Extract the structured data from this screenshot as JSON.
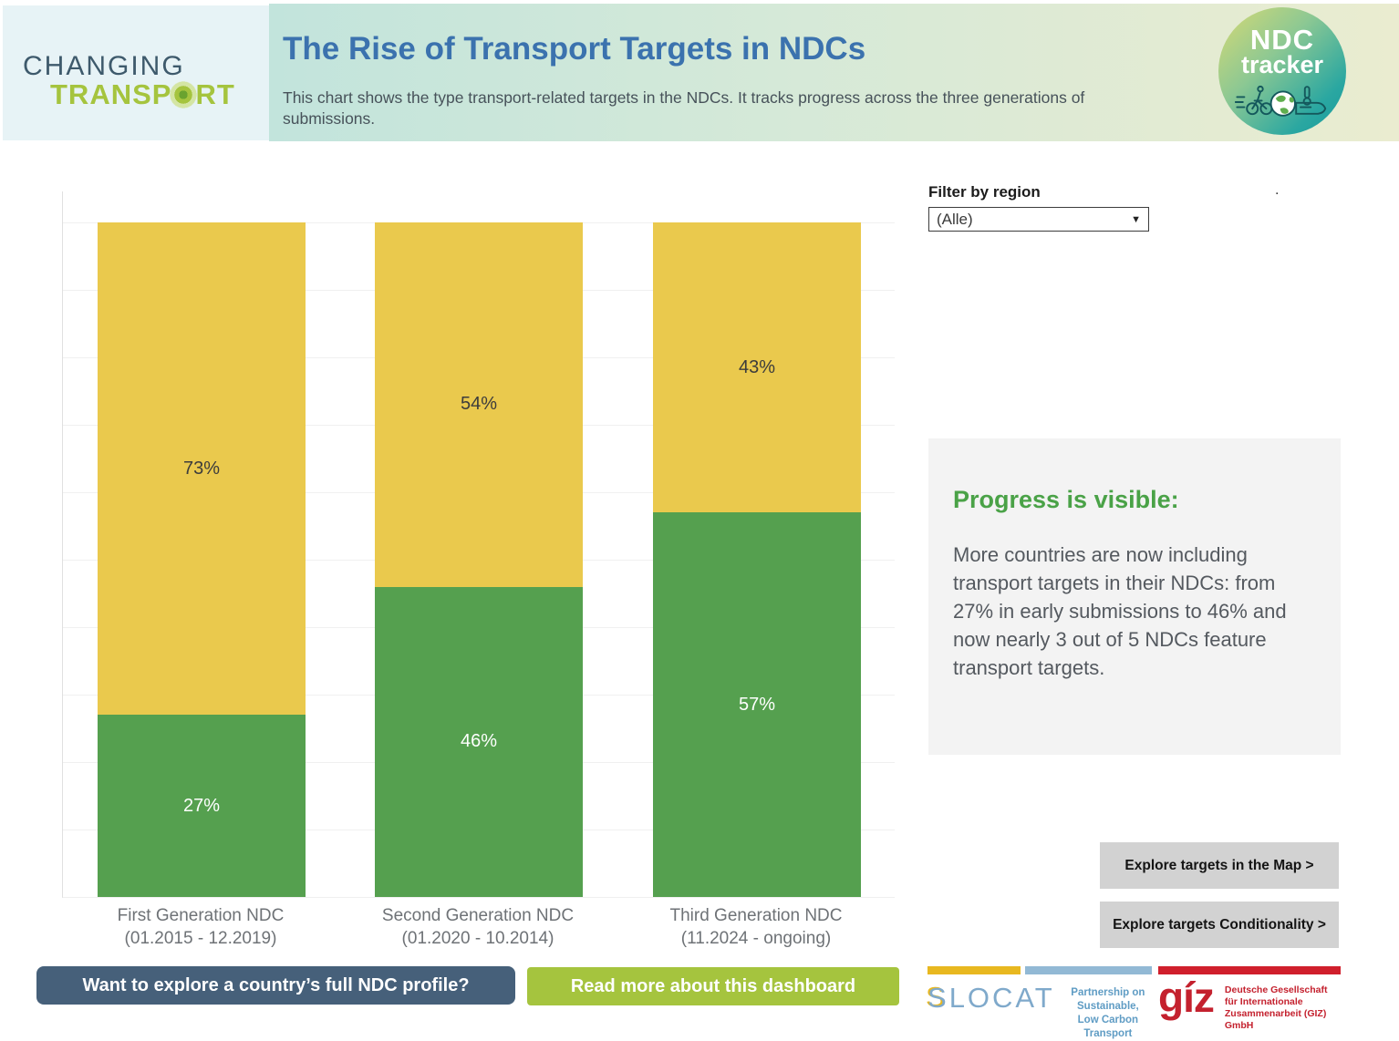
{
  "header": {
    "brand": {
      "line1": "CHANGING",
      "line2a": "TRANSP",
      "line2b": "RT"
    },
    "title": "The Rise of Transport Targets in NDCs",
    "subtitle": "This chart shows the type transport-related targets in the NDCs. It tracks progress across the three generations of submissions.",
    "badge": {
      "line1": "NDC",
      "line2": "tracker"
    }
  },
  "filter": {
    "label": "Filter by region",
    "value": "(Alle)",
    "chevron": "▼",
    "dot": "."
  },
  "chart_data": {
    "type": "bar",
    "stacked": true,
    "categories": [
      {
        "label": "First Generation NDC",
        "period": "(01.2015 - 12.2019)"
      },
      {
        "label": "Second Generation NDC",
        "period": "(01.2020 - 10.2014)"
      },
      {
        "label": "Third Generation NDC",
        "period": "(11.2024 - ongoing)"
      }
    ],
    "series": [
      {
        "id": "green-bottom",
        "color": "#55a04f",
        "label_color": "#ffffff",
        "values": [
          27,
          46,
          57
        ]
      },
      {
        "id": "yellow-top",
        "color": "#eac94d",
        "label_color": "#3c3c3c",
        "values": [
          73,
          54,
          43
        ]
      }
    ],
    "value_suffix": "%",
    "ylim": [
      0,
      100
    ],
    "grid_step": 10,
    "grid": true,
    "legend": false
  },
  "insight": {
    "title": "Progress is visible:",
    "body": "More countries are now including transport targets in their NDCs: from 27% in early submissions to 46% and now nearly 3 out of 5 NDCs feature transport targets."
  },
  "actions": {
    "explore_map": "Explore targets in the Map >",
    "explore_conditionality": "Explore targets Conditionality >"
  },
  "footer": {
    "cta_dark": "Want to explore a country’s full NDC profile?",
    "cta_green": "Read more about this dashboard"
  },
  "logos": {
    "slocat": {
      "name_first": "S",
      "name_rest": "LOCAT",
      "tagline1": "Partnership on Sustainable,",
      "tagline2": "Low Carbon Transport"
    },
    "giz": {
      "name": "gíz",
      "line1": "Deutsche Gesellschaft",
      "line2": "für Internationale",
      "line3": "Zusammenarbeit (GIZ) GmbH"
    }
  },
  "colors": {
    "bar_green": "#55a04f",
    "bar_yellow": "#eac94d",
    "title_blue": "#3b72ae",
    "insight_green": "#4aa247",
    "cta_dark": "#46607a",
    "cta_green": "#a5c43e",
    "giz_red": "#c4212e",
    "slocat_blue": "#7fa9cb",
    "slocat_yellow": "#e8b820"
  }
}
